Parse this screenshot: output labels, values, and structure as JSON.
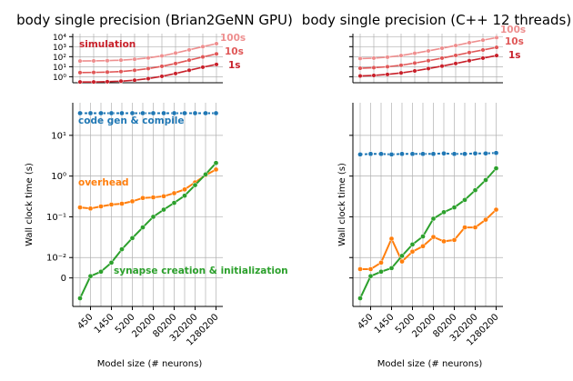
{
  "panel_titles": [
    "body single precision (Brian2GeNN GPU)",
    "body single precision (C++ 12 threads)"
  ],
  "colors": {
    "sim_light": "#ee8f8f",
    "sim_mid": "#e05757",
    "sim_dark": "#c8202a",
    "codegen": "#1f77b4",
    "overhead": "#ff7f0e",
    "synapse": "#2ca02c",
    "grid": "#b0b0b0",
    "axis": "#000000"
  },
  "chart_data": [
    {
      "type": "line",
      "panel": "left-top",
      "yscale": "log",
      "ylim_exp": [
        -0.6,
        4.3
      ],
      "yticks": [
        {
          "label": "10⁴",
          "exp": 4
        },
        {
          "label": "10³",
          "exp": 3
        },
        {
          "label": "10²",
          "exp": 2
        },
        {
          "label": "10¹",
          "exp": 1
        },
        {
          "label": "10⁰",
          "exp": 0
        }
      ],
      "annotation": "simulation",
      "series": [
        {
          "name": "100s",
          "color_key": "sim_light",
          "values": [
            37,
            38,
            40,
            45,
            55,
            75,
            120,
            230,
            480,
            1000,
            2000
          ]
        },
        {
          "name": "10s",
          "color_key": "sim_mid",
          "values": [
            2.6,
            2.7,
            2.9,
            3.3,
            4.4,
            6.5,
            11,
            21,
            45,
            95,
            190
          ]
        },
        {
          "name": "1s",
          "color_key": "sim_dark",
          "values": [
            0.3,
            0.3,
            0.32,
            0.36,
            0.45,
            0.65,
            1.1,
            2.1,
            4.4,
            9,
            17
          ]
        }
      ]
    },
    {
      "type": "line",
      "panel": "right-top",
      "yscale": "log",
      "ylim_exp": [
        -0.6,
        4.3
      ],
      "yticks": [],
      "series": [
        {
          "name": "100s",
          "color_key": "sim_light",
          "values": [
            65,
            72,
            90,
            130,
            220,
            380,
            700,
            1300,
            2500,
            4500,
            8000
          ]
        },
        {
          "name": "10s",
          "color_key": "sim_mid",
          "values": [
            7,
            8,
            10,
            14,
            23,
            40,
            72,
            135,
            260,
            470,
            850
          ]
        },
        {
          "name": "1s",
          "color_key": "sim_dark",
          "values": [
            1.2,
            1.35,
            1.7,
            2.4,
            3.8,
            6.5,
            11.5,
            21,
            40,
            72,
            130
          ]
        }
      ]
    },
    {
      "type": "line",
      "panel": "left-bottom",
      "ylabel": "Wall clock time (s)",
      "xlabel": "Model size (# neurons)",
      "yscale": "log",
      "ylim_exp": [
        -3.2,
        1.8
      ],
      "zero_row_exp": -3.0,
      "x_tick_labels": [
        "450",
        "1450",
        "5200",
        "20200",
        "80200",
        "320200",
        "1280200"
      ],
      "x_tick_positions": [
        1,
        3,
        5,
        7,
        9,
        11,
        13
      ],
      "yticks": [
        {
          "label": "10¹",
          "exp": 1
        },
        {
          "label": "10⁰",
          "exp": 0
        },
        {
          "label": "10⁻¹",
          "exp": -1
        },
        {
          "label": "10⁻²",
          "exp": -2
        },
        {
          "label": "0",
          "exp": -2.5
        }
      ],
      "series": [
        {
          "name": "code gen & compile",
          "color_key": "codegen",
          "values": [
            35,
            35,
            35,
            35,
            35,
            35,
            35,
            35,
            35,
            35,
            35,
            35,
            35,
            35
          ]
        },
        {
          "name": "overhead",
          "color_key": "overhead",
          "values": [
            0.17,
            0.16,
            0.18,
            0.2,
            0.21,
            0.24,
            0.29,
            0.3,
            0.32,
            0.38,
            0.47,
            0.7,
            1.05,
            1.45
          ]
        },
        {
          "name": "synapse creation & initialization",
          "color_key": "synapse",
          "values": [
            0,
            0.0035,
            0.0045,
            0.0075,
            0.016,
            0.03,
            0.055,
            0.1,
            0.15,
            0.22,
            0.33,
            0.6,
            1.1,
            2.1
          ]
        }
      ]
    },
    {
      "type": "line",
      "panel": "right-bottom",
      "ylabel": "Wall clock time (s)",
      "xlabel": "Model size (# neurons)",
      "yscale": "log",
      "ylim_exp": [
        -3.2,
        1.8
      ],
      "x_tick_labels": [
        "450",
        "1450",
        "5200",
        "20200",
        "80200",
        "320200",
        "1280200"
      ],
      "x_tick_positions": [
        1,
        3,
        5,
        7,
        9,
        11,
        13
      ],
      "yticks": [],
      "series": [
        {
          "name": "code gen & compile",
          "color_key": "codegen",
          "values": [
            3.4,
            3.5,
            3.5,
            3.4,
            3.5,
            3.5,
            3.5,
            3.5,
            3.6,
            3.5,
            3.5,
            3.6,
            3.6,
            3.7
          ]
        },
        {
          "name": "overhead",
          "color_key": "overhead",
          "values": [
            0.0052,
            0.0052,
            0.0075,
            0.029,
            0.008,
            0.014,
            0.019,
            0.032,
            0.025,
            0.027,
            0.055,
            0.055,
            0.085,
            0.15
          ]
        },
        {
          "name": "synapse creation & initialization",
          "color_key": "synapse",
          "values": [
            0,
            0.0035,
            0.0045,
            0.0055,
            0.011,
            0.021,
            0.033,
            0.09,
            0.13,
            0.17,
            0.26,
            0.45,
            0.8,
            1.55
          ]
        }
      ]
    }
  ]
}
